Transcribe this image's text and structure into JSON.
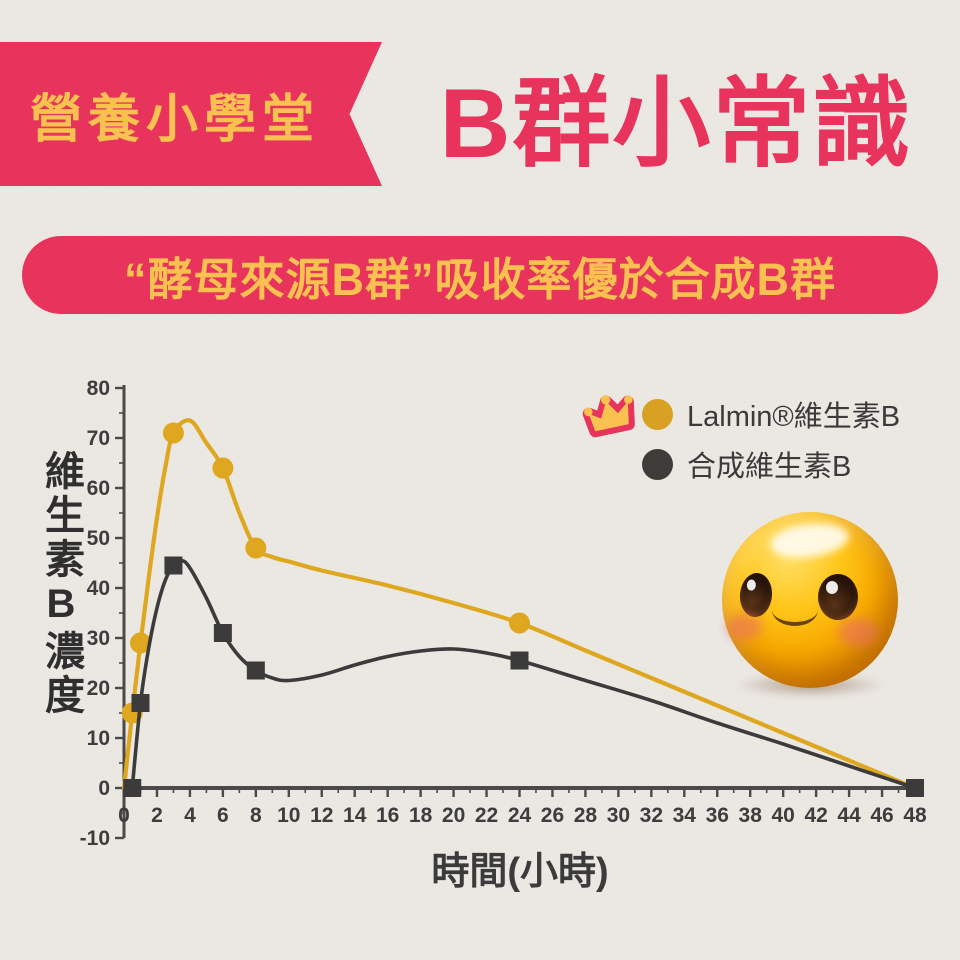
{
  "header": {
    "badge_label": "營養小學堂",
    "title": "B群小常識"
  },
  "banner": {
    "text": "“酵母來源B群”吸收率優於合成B群"
  },
  "legend": {
    "items": [
      {
        "label": "Lalmin®維生素B",
        "swatch_color": "#d9a123",
        "crowned": true
      },
      {
        "label": "合成維生素B",
        "swatch_color": "#3f3b38",
        "crowned": false
      }
    ]
  },
  "mascot": {
    "name": "yellow-ball-character"
  },
  "colors": {
    "pink": "#e8345c",
    "yellow_text": "#f9c250",
    "series_yellow": "#dfa71f",
    "series_dark": "#3b3b3b",
    "axis": "#4a4a4a",
    "paper": "#edeae4"
  },
  "chart_data": {
    "type": "line",
    "title": "",
    "xlabel": "時間(小時)",
    "ylabel": "維生素B濃度",
    "xlim": [
      0,
      48
    ],
    "ylim": [
      -10,
      80
    ],
    "x_major_step": 2,
    "x_minor_step": 1,
    "y_major_step": 10,
    "y_minor_step": 5,
    "grid": false,
    "legend_position": "top-right",
    "series": [
      {
        "name": "Lalmin®維生素B",
        "color": "#dfa71f",
        "marker": "circle",
        "marker_points": [
          [
            0.5,
            15
          ],
          [
            1,
            29
          ],
          [
            3,
            71
          ],
          [
            6,
            64
          ],
          [
            8,
            48
          ],
          [
            24,
            33
          ]
        ],
        "curve_points": [
          [
            0,
            0
          ],
          [
            0.5,
            15
          ],
          [
            1,
            29
          ],
          [
            1.5,
            42
          ],
          [
            2,
            54
          ],
          [
            2.5,
            64
          ],
          [
            3,
            71
          ],
          [
            4,
            73.5
          ],
          [
            5,
            69
          ],
          [
            6,
            64
          ],
          [
            7,
            55
          ],
          [
            8,
            48
          ],
          [
            9,
            46.2
          ],
          [
            10,
            45.3
          ],
          [
            12,
            43.5
          ],
          [
            16,
            40.5
          ],
          [
            20,
            37
          ],
          [
            24,
            33
          ],
          [
            28,
            27.5
          ],
          [
            32,
            22
          ],
          [
            36,
            16.5
          ],
          [
            40,
            11
          ],
          [
            44,
            5.5
          ],
          [
            48,
            0
          ]
        ]
      },
      {
        "name": "合成維生素B",
        "color": "#3b3b3b",
        "marker": "square",
        "marker_points": [
          [
            0.5,
            0
          ],
          [
            1,
            17
          ],
          [
            3,
            44.5
          ],
          [
            6,
            31
          ],
          [
            8,
            23.5
          ],
          [
            24,
            25.5
          ],
          [
            48,
            0
          ]
        ],
        "curve_points": [
          [
            0.5,
            0
          ],
          [
            1,
            17
          ],
          [
            1.5,
            28
          ],
          [
            2,
            36
          ],
          [
            2.5,
            41.5
          ],
          [
            3,
            44.5
          ],
          [
            3.5,
            45.5
          ],
          [
            4,
            44
          ],
          [
            5,
            38
          ],
          [
            6,
            31
          ],
          [
            7,
            26.3
          ],
          [
            8,
            23.5
          ],
          [
            9,
            22
          ],
          [
            10,
            21.5
          ],
          [
            12,
            22.6
          ],
          [
            14,
            24.6
          ],
          [
            16,
            26.3
          ],
          [
            18,
            27.4
          ],
          [
            20,
            27.8
          ],
          [
            22,
            27
          ],
          [
            24,
            25.5
          ],
          [
            28,
            21.5
          ],
          [
            32,
            17.5
          ],
          [
            36,
            13
          ],
          [
            40,
            8.8
          ],
          [
            44,
            4.4
          ],
          [
            48,
            0
          ]
        ]
      }
    ]
  }
}
